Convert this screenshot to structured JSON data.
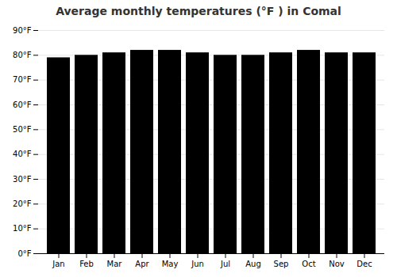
{
  "chart_data": {
    "type": "bar",
    "title": "Average monthly temperatures (°F ) in Comal",
    "categories": [
      "Jan",
      "Feb",
      "Mar",
      "Apr",
      "May",
      "Jun",
      "Jul",
      "Aug",
      "Sep",
      "Oct",
      "Nov",
      "Dec"
    ],
    "values": [
      79,
      80,
      81,
      82,
      82,
      81,
      80,
      80,
      81,
      82,
      81,
      81
    ],
    "ylim": [
      0,
      90
    ],
    "yticks": [
      {
        "value": 0,
        "label": "0°F"
      },
      {
        "value": 10,
        "label": "10°F"
      },
      {
        "value": 20,
        "label": "20°F"
      },
      {
        "value": 30,
        "label": "30°F"
      },
      {
        "value": 40,
        "label": "40°F"
      },
      {
        "value": 50,
        "label": "50°F"
      },
      {
        "value": 60,
        "label": "60°F"
      },
      {
        "value": 70,
        "label": "70°F"
      },
      {
        "value": 80,
        "label": "80°F"
      },
      {
        "value": 90,
        "label": "90°F"
      }
    ],
    "grid": true
  }
}
